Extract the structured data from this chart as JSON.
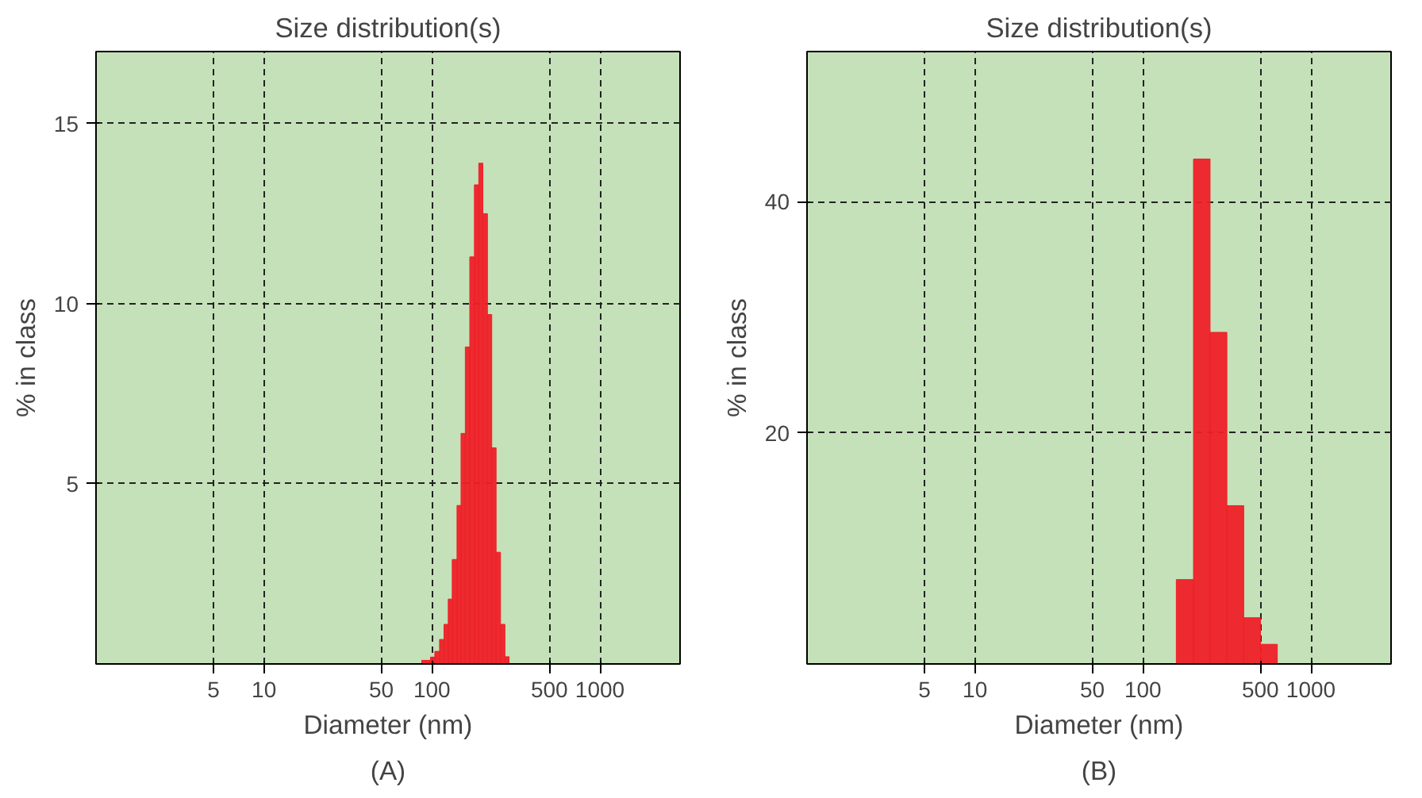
{
  "chart_data": [
    {
      "type": "histogram",
      "title": "Size distribution(s)",
      "xlabel": "Diameter (nm)",
      "ylabel": "% in class",
      "annotations": [
        "(A)"
      ],
      "log": "x",
      "grid": true,
      "xlim": [
        1,
        3000
      ],
      "xticks": [
        5,
        10,
        50,
        100,
        500,
        1000
      ],
      "ylim": [
        0,
        17
      ],
      "yticks": [
        5,
        10,
        15
      ],
      "bins": [
        87,
        92,
        98,
        104,
        111,
        118,
        125,
        132,
        141,
        149,
        158,
        168,
        179,
        190,
        201,
        214,
        227,
        241,
        256,
        272,
        288
      ],
      "values": [
        0.1,
        0.1,
        0.19,
        0.35,
        0.68,
        1.1,
        1.8,
        2.9,
        4.4,
        6.4,
        8.8,
        11.3,
        13.3,
        13.9,
        12.5,
        9.7,
        6.0,
        3.1,
        1.1,
        0.2
      ],
      "color": "#ee2027"
    },
    {
      "type": "histogram",
      "title": "Size distribution(s)",
      "xlabel": "Diameter (nm)",
      "ylabel": "% in class",
      "annotations": [
        "(B)"
      ],
      "log": "x",
      "grid": true,
      "xlim": [
        1,
        3000
      ],
      "xticks": [
        5,
        10,
        50,
        100,
        500,
        1000
      ],
      "ylim": [
        0,
        53
      ],
      "yticks": [
        20,
        40
      ],
      "bins": [
        126,
        158,
        200,
        251,
        316,
        398,
        501,
        631
      ],
      "values": [
        0,
        7.3,
        43.7,
        28.7,
        13.7,
        4.0,
        1.7
      ],
      "color": "#ee2027"
    }
  ]
}
